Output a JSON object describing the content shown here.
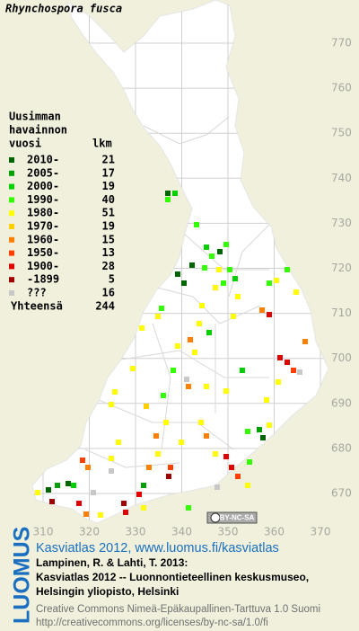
{
  "title": "Rhynchospora fusca",
  "legend": {
    "header": [
      "Uusimman",
      "havainnon",
      "vuosi"
    ],
    "count_header": "lkm",
    "rows": [
      {
        "label": "2010-",
        "count": 21,
        "color": "#006400"
      },
      {
        "label": "2005-",
        "count": 17,
        "color": "#00a000"
      },
      {
        "label": "2000-",
        "count": 19,
        "color": "#00d000"
      },
      {
        "label": "1990-",
        "count": 40,
        "color": "#33ff00"
      },
      {
        "label": "1980-",
        "count": 51,
        "color": "#ffff00"
      },
      {
        "label": "1970-",
        "count": 19,
        "color": "#ffd000"
      },
      {
        "label": "1960-",
        "count": 15,
        "color": "#ff8000"
      },
      {
        "label": "1950-",
        "count": 13,
        "color": "#ff4000"
      },
      {
        "label": "1900-",
        "count": 28,
        "color": "#e00000"
      },
      {
        "label": "-1899",
        "count": 5,
        "color": "#a00000"
      },
      {
        "label": "???",
        "count": 16,
        "color": "#c8c8c8"
      }
    ],
    "total_label": "Yhteensä",
    "total": 244
  },
  "grid": {
    "yticks": [
      770,
      760,
      750,
      740,
      730,
      720,
      710,
      700,
      690,
      680,
      670
    ],
    "xticks": [
      310,
      320,
      330,
      340,
      350,
      360,
      370
    ]
  },
  "license_badge": "BY-NC-SA",
  "footer": {
    "logo": "LUOMUS",
    "link": "Kasviatlas 2012, www.luomus.fi/kasviatlas",
    "citation": [
      "Lampinen, R. & Lahti, T. 2013:",
      "Kasviatlas 2012 -- Luonnontieteellinen keskusmuseo,",
      "Helsingin yliopisto, Helsinki"
    ],
    "license": [
      "Creative Commons Nimeä-Epäkaupallinen-Tarttuva 1.0 Suomi",
      "http://creativecommons.org/licenses/by-nc-sa/1.0/fi"
    ]
  }
}
